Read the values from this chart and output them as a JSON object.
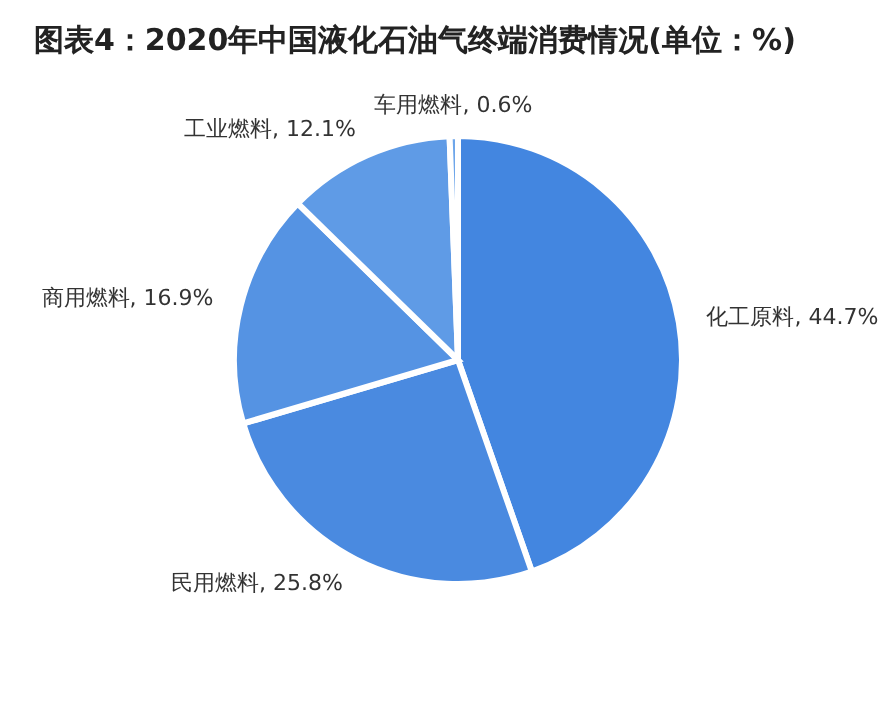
{
  "chart_data": {
    "type": "pie",
    "title": "图表4：2020年中国液化石油气终端消费情况(单位：%)",
    "categories": [
      "化工原料",
      "民用燃料",
      "商用燃料",
      "工业燃料",
      "车用燃料"
    ],
    "values": [
      44.7,
      25.8,
      16.9,
      12.1,
      0.6
    ],
    "value_labels": [
      "44.7%",
      "25.8%",
      "16.9%",
      "12.1%",
      "0.6%"
    ],
    "colors": [
      "#4386e0",
      "#4a8ae0",
      "#5593e3",
      "#5f9be6",
      "#6ea6ea"
    ],
    "legend": false
  }
}
